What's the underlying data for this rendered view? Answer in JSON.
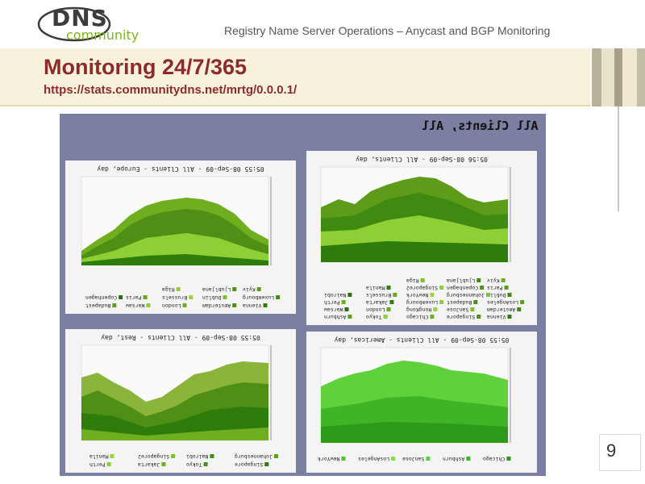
{
  "logo": {
    "dns": "DNS",
    "community": "community"
  },
  "header": {
    "text": "Registry Name Server Operations – Anycast and BGP Monitoring"
  },
  "title": "Monitoring 24/7/365",
  "url": "https://stats.communitydns.net/mrtg/0.0.0.1/",
  "page_number": "9",
  "panel": {
    "title": "All Clients, All"
  },
  "graphs": {
    "europe": {
      "title": "05:55 08-Sep-09 - All Clients - Europe, day"
    },
    "all": {
      "title": "05:56 08-Sep-09 - All Clients, day"
    },
    "rest": {
      "title": "05:55 08-Sep-09 - All Clients - Rest, day"
    },
    "americas": {
      "title": "05:55 08-Sep-09 - All Clients - Americas, day"
    }
  },
  "legends": {
    "europe": [
      "Vienna",
      "Amsterdam",
      "London",
      "Warsaw",
      "Budapest",
      "Luxembourg",
      "Dublin",
      "Brussels",
      "Paris",
      "Copenhagen",
      "Kyiv",
      "Ljubljana",
      "Riga"
    ],
    "all": [
      "Vienna",
      "Singapore",
      "Chicago",
      "Tokyo",
      "Ashburn",
      "Amsterdam",
      "SanJose",
      "HongKong",
      "London",
      "Warsaw",
      "LosAngeles",
      "Budapest",
      "Luxembourg",
      "Jakarta",
      "Perth",
      "Dublin",
      "Johannesburg",
      "NewYork",
      "Brussels",
      "Nairobi",
      "Paris",
      "Copenhagen",
      "Singapore2",
      "Manila",
      "Kyiv",
      "Ljubljana",
      "Riga"
    ],
    "rest": [
      "Singapore",
      "Tokyo",
      "Jakarta",
      "Perth",
      "Johannesburg",
      "Nairobi",
      "Singapore2",
      "Manila"
    ],
    "americas": [
      "Chicago",
      "Ashburn",
      "SanJose",
      "LosAngeles",
      "NewYork"
    ]
  },
  "colors": {
    "accent": "#8d2b2b",
    "green": "#7fb21f",
    "panel": "#7b7fa1"
  }
}
